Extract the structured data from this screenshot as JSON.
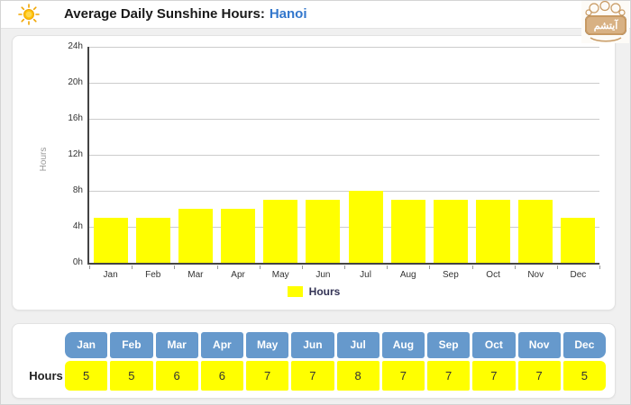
{
  "header": {
    "title": "Average Daily Sunshine Hours:",
    "location": "Hanoi",
    "logo_text": "آیتشم"
  },
  "colors": {
    "bar_yellow": "#ffff00",
    "table_header_blue": "#6699cc",
    "location_blue": "#3377cc",
    "title_text": "#1a1a1a",
    "grid_line": "#cccccc",
    "axis_line": "#444444",
    "tick_text": "#333333",
    "label_gray": "#999999",
    "legend_text": "#333355",
    "page_bg": "#f0f0f0",
    "card_bg": "#ffffff",
    "logo_tan": "#c89a63"
  },
  "chart_data": {
    "type": "bar",
    "title": "Average Daily Sunshine Hours: Hanoi",
    "categories": [
      "Jan",
      "Feb",
      "Mar",
      "Apr",
      "May",
      "Jun",
      "Jul",
      "Aug",
      "Sep",
      "Oct",
      "Nov",
      "Dec"
    ],
    "series": [
      {
        "name": "Hours",
        "values": [
          5,
          5,
          6,
          6,
          7,
          7,
          8,
          7,
          7,
          7,
          7,
          5
        ]
      }
    ],
    "xlabel": "",
    "ylabel": "Hours",
    "ylim": [
      0,
      24
    ],
    "ytick_step": 4,
    "ytick_suffix": "h",
    "grid": true,
    "legend": {
      "label": "Hours",
      "position": "bottom"
    }
  },
  "table": {
    "row_label": "Hours",
    "columns": [
      "Jan",
      "Feb",
      "Mar",
      "Apr",
      "May",
      "Jun",
      "Jul",
      "Aug",
      "Sep",
      "Oct",
      "Nov",
      "Dec"
    ],
    "values": [
      5,
      5,
      6,
      6,
      7,
      7,
      8,
      7,
      7,
      7,
      7,
      5
    ]
  }
}
